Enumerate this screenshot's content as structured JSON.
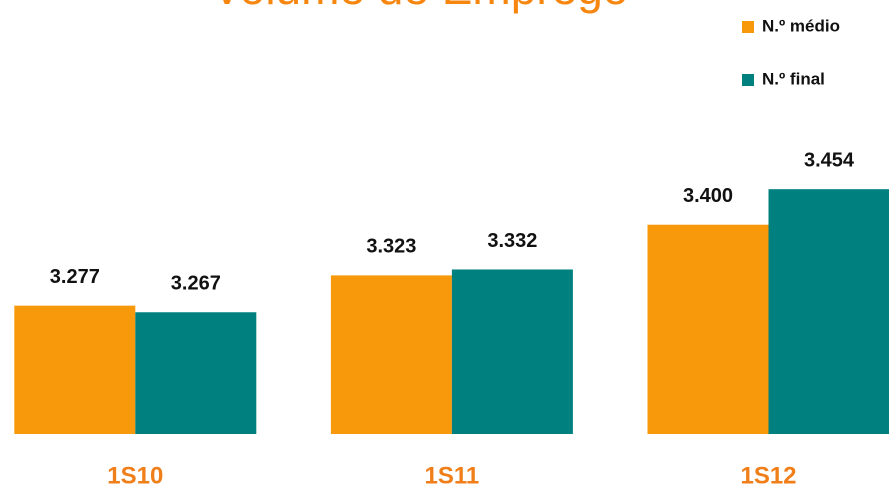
{
  "chart_data": {
    "type": "bar",
    "title": "Volume de Emprego",
    "categories": [
      "1S10",
      "1S11",
      "1S12"
    ],
    "series": [
      {
        "name": "N.º médio",
        "color": "#f7990b",
        "values": [
          3277,
          3323,
          3400
        ],
        "value_labels": [
          "3.277",
          "3.323",
          "3.400"
        ]
      },
      {
        "name": "N.º final",
        "color": "#00807f",
        "values": [
          3267,
          3332,
          3454
        ],
        "value_labels": [
          "3.267",
          "3.332",
          "3.454"
        ]
      }
    ],
    "ylim": [
      3082,
      3550
    ],
    "legend": "upper right"
  }
}
